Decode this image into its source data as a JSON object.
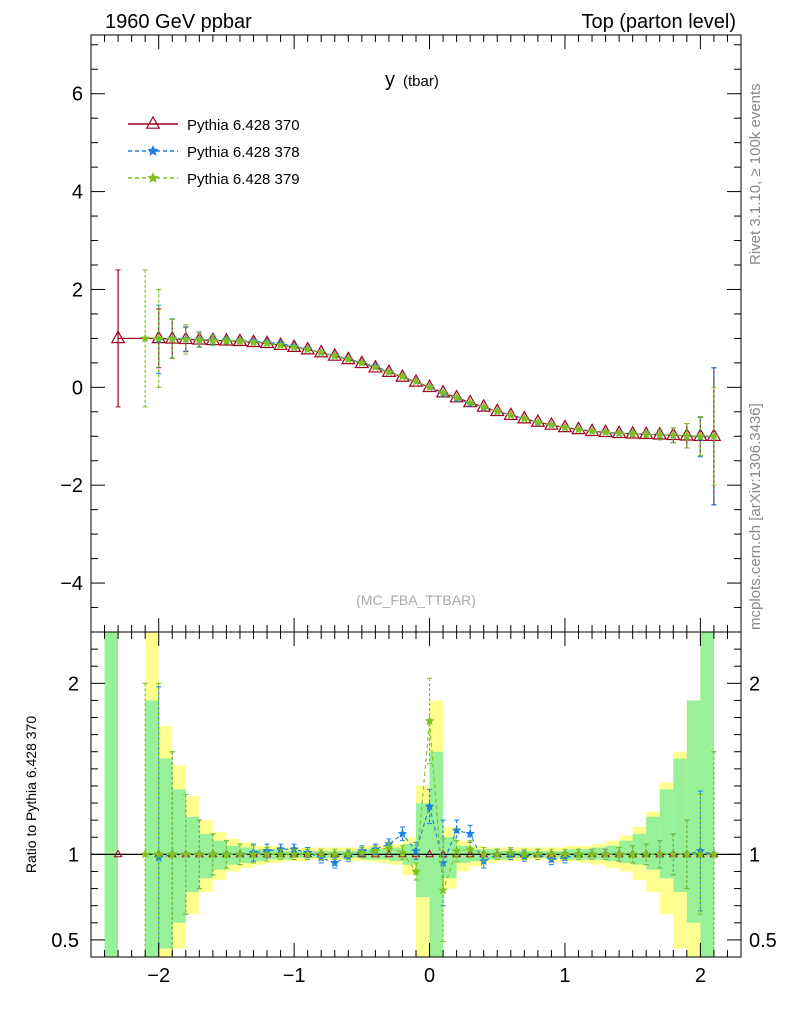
{
  "header": {
    "left_title": "1960 GeV ppbar",
    "right_title": "Top (parton level)"
  },
  "side_labels": {
    "rivet": "Rivet 3.1.10, ≥ 100k events",
    "mcplots": "mcplots.cern.ch [arXiv:1306.3436]"
  },
  "chart_data": [
    {
      "type": "line",
      "title": "y",
      "title_sub": "(tbar)",
      "annotation": "(MC_FBA_TTBAR)",
      "xlim": [
        -2.5,
        2.3
      ],
      "ylim": [
        -5,
        7.2
      ],
      "yticks": [
        -4,
        -2,
        0,
        2,
        4,
        6
      ],
      "ytick_labels": [
        "−4",
        "−2",
        "0",
        "2",
        "4",
        "6"
      ],
      "legend_position": "top-left",
      "x": [
        -2.3,
        -2.1,
        -2.0,
        -1.9,
        -1.8,
        -1.7,
        -1.6,
        -1.5,
        -1.4,
        -1.3,
        -1.2,
        -1.1,
        -1.0,
        -0.9,
        -0.8,
        -0.7,
        -0.6,
        -0.5,
        -0.4,
        -0.3,
        -0.2,
        -0.1,
        0.0,
        0.1,
        0.2,
        0.3,
        0.4,
        0.5,
        0.6,
        0.7,
        0.8,
        0.9,
        1.0,
        1.1,
        1.2,
        1.3,
        1.4,
        1.5,
        1.6,
        1.7,
        1.8,
        1.9,
        2.0,
        2.1
      ],
      "series": [
        {
          "name": "Pythia 6.428 370",
          "color": "#a0001c",
          "marker": "triangle-open",
          "linestyle": "solid",
          "values": [
            1.0,
            null,
            1.0,
            0.99,
            0.98,
            0.97,
            0.96,
            0.95,
            0.94,
            0.92,
            0.9,
            0.86,
            0.82,
            0.77,
            0.71,
            0.64,
            0.57,
            0.49,
            0.4,
            0.31,
            0.21,
            0.11,
            0.0,
            -0.11,
            -0.21,
            -0.31,
            -0.4,
            -0.49,
            -0.57,
            -0.64,
            -0.71,
            -0.77,
            -0.82,
            -0.86,
            -0.9,
            -0.92,
            -0.94,
            -0.95,
            -0.96,
            -0.97,
            -0.98,
            -0.99,
            -1.0,
            -1.0
          ],
          "errors": [
            1.4,
            null,
            0.6,
            0.4,
            0.25,
            0.15,
            0.1,
            0.06,
            0.05,
            0.04,
            0.03,
            0.03,
            0.02,
            0.02,
            0.02,
            0.02,
            0.02,
            0.02,
            0.02,
            0.02,
            0.02,
            0.02,
            0.02,
            0.02,
            0.02,
            0.02,
            0.02,
            0.02,
            0.02,
            0.02,
            0.02,
            0.02,
            0.02,
            0.02,
            0.03,
            0.03,
            0.04,
            0.05,
            0.06,
            0.1,
            0.15,
            0.25,
            0.4,
            1.4
          ]
        },
        {
          "name": "Pythia 6.428 378",
          "color": "#1a80e0",
          "marker": "star",
          "linestyle": "dashed",
          "values": [
            null,
            null,
            0.98,
            1.0,
            0.99,
            0.98,
            0.97,
            0.96,
            0.95,
            0.94,
            0.92,
            0.89,
            0.84,
            0.78,
            0.71,
            0.65,
            0.58,
            0.51,
            0.43,
            0.32,
            0.22,
            0.12,
            0.0,
            -0.13,
            -0.23,
            -0.33,
            -0.41,
            -0.49,
            -0.57,
            -0.64,
            -0.72,
            -0.77,
            -0.82,
            -0.86,
            -0.9,
            -0.92,
            -0.94,
            -0.95,
            -0.96,
            -0.97,
            -0.98,
            -0.99,
            -1.02,
            -1.0
          ],
          "errors": [
            null,
            null,
            0.7,
            0.4,
            0.25,
            0.15,
            0.1,
            0.06,
            0.05,
            0.04,
            0.03,
            0.03,
            0.02,
            0.02,
            0.02,
            0.02,
            0.02,
            0.02,
            0.02,
            0.02,
            0.02,
            0.02,
            0.02,
            0.02,
            0.02,
            0.02,
            0.02,
            0.02,
            0.02,
            0.02,
            0.02,
            0.02,
            0.02,
            0.02,
            0.03,
            0.03,
            0.04,
            0.05,
            0.06,
            0.1,
            0.15,
            0.25,
            0.4,
            1.4
          ]
        },
        {
          "name": "Pythia 6.428 379",
          "color": "#80c020",
          "marker": "star",
          "linestyle": "dashed",
          "values": [
            null,
            1.0,
            1.0,
            0.99,
            0.98,
            0.97,
            0.96,
            0.95,
            0.94,
            0.92,
            0.9,
            0.86,
            0.82,
            0.77,
            0.71,
            0.64,
            0.57,
            0.5,
            0.41,
            0.31,
            0.22,
            0.12,
            0.0,
            -0.11,
            -0.21,
            -0.31,
            -0.4,
            -0.49,
            -0.57,
            -0.64,
            -0.71,
            -0.77,
            -0.82,
            -0.86,
            -0.9,
            -0.92,
            -0.94,
            -0.95,
            -0.96,
            -0.97,
            -0.98,
            -0.99,
            -1.0,
            -1.0
          ],
          "errors": [
            null,
            1.4,
            1.0,
            0.4,
            0.3,
            0.15,
            0.1,
            0.06,
            0.05,
            0.04,
            0.03,
            0.03,
            0.02,
            0.02,
            0.02,
            0.02,
            0.02,
            0.02,
            0.02,
            0.02,
            0.02,
            0.02,
            0.02,
            0.02,
            0.02,
            0.02,
            0.02,
            0.02,
            0.02,
            0.02,
            0.02,
            0.02,
            0.02,
            0.02,
            0.03,
            0.03,
            0.04,
            0.05,
            0.06,
            0.1,
            0.15,
            0.25,
            0.4,
            1.0
          ]
        }
      ]
    },
    {
      "type": "line",
      "ylabel": "Ratio to Pythia 6.428 370",
      "xlim": [
        -2.5,
        2.3
      ],
      "ylim": [
        0.4,
        2.3
      ],
      "xticks": [
        -2,
        -1,
        0,
        1,
        2
      ],
      "xtick_labels": [
        "−2",
        "−1",
        "0",
        "1",
        "2"
      ],
      "yticks": [
        0.5,
        1,
        2
      ],
      "ytick_labels": [
        "0.5",
        "1",
        "2"
      ],
      "reference_line": 1,
      "bands": {
        "x_edges": [
          -2.4,
          -2.3,
          -2.2,
          -2.1,
          -2.0,
          -1.9,
          -1.8,
          -1.7,
          -1.6,
          -1.5,
          -1.4,
          -1.3,
          -1.2,
          -1.1,
          -1.0,
          -0.9,
          -0.8,
          -0.7,
          -0.6,
          -0.5,
          -0.4,
          -0.3,
          -0.2,
          -0.1,
          0.0,
          0.1,
          0.2,
          0.3,
          0.4,
          0.5,
          0.6,
          0.7,
          0.8,
          0.9,
          1.0,
          1.1,
          1.2,
          1.3,
          1.4,
          1.5,
          1.6,
          1.7,
          1.8,
          1.9,
          2.0,
          2.1
        ],
        "inner_low": [
          0.3,
          null,
          null,
          0.3,
          0.45,
          0.6,
          0.78,
          0.86,
          0.91,
          0.94,
          0.95,
          0.96,
          0.97,
          0.97,
          0.98,
          0.98,
          0.98,
          0.98,
          0.98,
          0.97,
          0.97,
          0.96,
          0.94,
          0.75,
          0.4,
          0.86,
          0.95,
          0.96,
          0.97,
          0.97,
          0.98,
          0.98,
          0.98,
          0.98,
          0.97,
          0.97,
          0.97,
          0.96,
          0.95,
          0.94,
          0.91,
          0.86,
          0.78,
          0.6,
          0.35
        ],
        "inner_high": [
          2.3,
          null,
          null,
          1.9,
          1.56,
          1.38,
          1.22,
          1.12,
          1.08,
          1.05,
          1.04,
          1.03,
          1.03,
          1.02,
          1.02,
          1.02,
          1.02,
          1.02,
          1.02,
          1.03,
          1.03,
          1.04,
          1.06,
          1.3,
          1.6,
          1.1,
          1.05,
          1.03,
          1.03,
          1.02,
          1.02,
          1.02,
          1.02,
          1.02,
          1.03,
          1.03,
          1.04,
          1.05,
          1.08,
          1.12,
          1.22,
          1.38,
          1.56,
          1.9,
          2.3
        ],
        "outer_low": [
          0.3,
          null,
          null,
          0.3,
          0.35,
          0.45,
          0.65,
          0.78,
          0.85,
          0.9,
          0.92,
          0.94,
          0.95,
          0.96,
          0.96,
          0.97,
          0.97,
          0.97,
          0.96,
          0.96,
          0.95,
          0.94,
          0.88,
          0.3,
          0.3,
          0.8,
          0.9,
          0.93,
          0.95,
          0.96,
          0.96,
          0.97,
          0.97,
          0.96,
          0.96,
          0.95,
          0.94,
          0.92,
          0.9,
          0.85,
          0.78,
          0.65,
          0.45,
          0.3,
          0.3
        ],
        "outer_high": [
          2.3,
          null,
          null,
          2.3,
          1.75,
          1.52,
          1.34,
          1.2,
          1.13,
          1.09,
          1.07,
          1.05,
          1.05,
          1.04,
          1.04,
          1.04,
          1.04,
          1.04,
          1.04,
          1.05,
          1.05,
          1.06,
          1.1,
          1.4,
          1.9,
          1.16,
          1.08,
          1.05,
          1.04,
          1.04,
          1.04,
          1.04,
          1.04,
          1.04,
          1.05,
          1.05,
          1.06,
          1.08,
          1.11,
          1.16,
          1.25,
          1.42,
          1.6,
          1.9,
          2.3
        ],
        "inner_color": "#98f198",
        "outer_color": "#ffff90"
      },
      "series": [
        {
          "name": "Pythia 6.428 378",
          "color": "#1a80e0",
          "values": [
            null,
            null,
            0.98,
            1.0,
            1.0,
            1.0,
            1.0,
            1.0,
            1.0,
            1.01,
            1.02,
            1.03,
            1.03,
            1.01,
            0.98,
            0.95,
            0.99,
            1.02,
            1.03,
            1.06,
            1.12,
            1.02,
            1.28,
            0.95,
            1.14,
            1.12,
            0.96,
            1.0,
            1.0,
            0.99,
            1.0,
            0.97,
            0.98,
            1.0,
            1.0,
            1.0,
            1.0,
            1.0,
            1.0,
            1.0,
            1.0,
            1.0,
            1.02,
            1.0
          ],
          "errors": [
            null,
            null,
            1.0,
            0.6,
            0.35,
            0.2,
            0.12,
            0.08,
            0.06,
            0.05,
            0.04,
            0.03,
            0.03,
            0.03,
            0.03,
            0.03,
            0.03,
            0.03,
            0.03,
            0.03,
            0.04,
            0.05,
            0.1,
            0.25,
            0.06,
            0.05,
            0.04,
            0.03,
            0.03,
            0.03,
            0.03,
            0.03,
            0.03,
            0.03,
            0.03,
            0.03,
            0.04,
            0.05,
            0.06,
            0.08,
            0.12,
            0.2,
            0.35,
            0.6
          ]
        },
        {
          "name": "Pythia 6.428 379",
          "color": "#80c020",
          "values": [
            null,
            1.0,
            1.0,
            1.0,
            1.0,
            1.0,
            1.0,
            1.0,
            1.0,
            1.0,
            1.0,
            1.0,
            1.0,
            1.0,
            1.0,
            1.0,
            1.0,
            1.01,
            1.02,
            1.04,
            1.01,
            0.9,
            1.78,
            0.79,
            1.02,
            1.03,
            1.0,
            1.0,
            1.01,
            1.0,
            1.0,
            1.0,
            1.0,
            1.0,
            1.0,
            1.0,
            1.0,
            1.0,
            1.0,
            1.0,
            1.0,
            1.0,
            1.0,
            1.0
          ],
          "errors": [
            null,
            1.0,
            1.0,
            0.6,
            0.35,
            0.2,
            0.12,
            0.08,
            0.06,
            0.05,
            0.04,
            0.03,
            0.03,
            0.03,
            0.03,
            0.03,
            0.03,
            0.03,
            0.03,
            0.03,
            0.04,
            0.05,
            0.25,
            0.3,
            0.06,
            0.05,
            0.04,
            0.03,
            0.03,
            0.03,
            0.03,
            0.03,
            0.03,
            0.03,
            0.03,
            0.03,
            0.04,
            0.05,
            0.06,
            0.08,
            0.12,
            0.2,
            0.35,
            0.6
          ]
        }
      ]
    }
  ]
}
